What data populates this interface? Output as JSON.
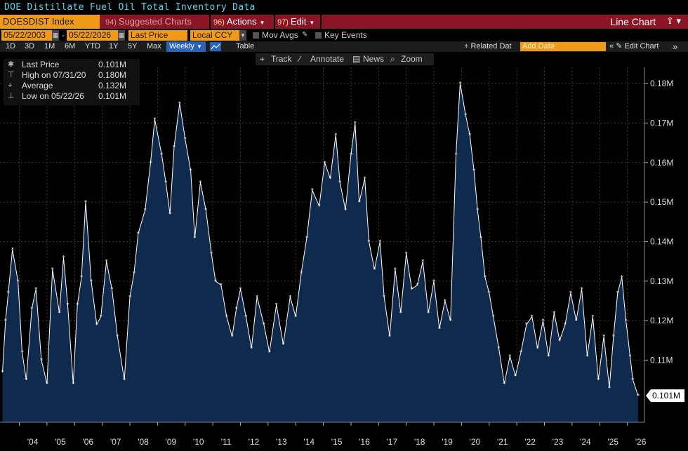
{
  "window": {
    "title": "DOE Distillate Fuel Oil Total Inventory Data"
  },
  "menubar": {
    "ticker": "DOESDIST Index",
    "suggested": {
      "num": "94)",
      "label": "Suggested Charts"
    },
    "actions": {
      "num": "96)",
      "label": "Actions"
    },
    "edit": {
      "num": "97)",
      "label": "Edit"
    },
    "view": "Line Chart"
  },
  "controls": {
    "start_date": "05/22/2003",
    "end_date": "05/22/2026",
    "field": "Last Price",
    "currency": "Local CCY",
    "mov_avgs": "Mov Avgs",
    "key_events": "Key Events"
  },
  "periods": [
    "1D",
    "3D",
    "1M",
    "6M",
    "YTD",
    "1Y",
    "5Y",
    "Max"
  ],
  "frequency": "Weekly",
  "table_label": "Table",
  "related_data": {
    "label": "+ Related Dat",
    "placeholder": "Add Data"
  },
  "edit_chart": "Edit Chart",
  "tools": {
    "track": "Track",
    "annotate": "Annotate",
    "news": "News",
    "zoom": "Zoom"
  },
  "legend": [
    {
      "key": "Last Price",
      "value": "0.101M"
    },
    {
      "key": "High on 07/31/20",
      "value": "0.180M"
    },
    {
      "key": "Average",
      "value": "0.132M"
    },
    {
      "key": "Low on 05/22/26",
      "value": "0.101M"
    }
  ],
  "colors": {
    "accent_orange": "#f09a1a",
    "menu_red": "#8a1524",
    "area_fill": "#0f2a4d",
    "line": "#ffffff",
    "title": "#5fd3e8"
  },
  "chart_data": {
    "type": "area",
    "ylim": [
      0.098,
      0.188
    ],
    "yticks": [
      "0.18M",
      "0.17M",
      "0.16M",
      "0.15M",
      "0.14M",
      "0.13M",
      "0.12M",
      "0.11M"
    ],
    "ytick_values": [
      0.18,
      0.17,
      0.16,
      0.15,
      0.14,
      0.13,
      0.12,
      0.11
    ],
    "xticks": [
      "'04",
      "'05",
      "'06",
      "'07",
      "'08",
      "'09",
      "'10",
      "'11",
      "'12",
      "'13",
      "'14",
      "'15",
      "'16",
      "'17",
      "'18",
      "'19",
      "'20",
      "'21",
      "'22",
      "'23",
      "'24",
      "'25",
      "'26"
    ],
    "xtick_values": [
      2004,
      2005,
      2006,
      2007,
      2008,
      2009,
      2010,
      2011,
      2012,
      2013,
      2014,
      2015,
      2016,
      2017,
      2018,
      2019,
      2020,
      2021,
      2022,
      2023,
      2024,
      2025,
      2026
    ],
    "last_value_label": "0.101M",
    "series": [
      {
        "x": [
          2003.39,
          2003.5,
          2003.6,
          2003.75,
          2003.95,
          2004.1,
          2004.25,
          2004.45,
          2004.6,
          2004.8,
          2005.0,
          2005.2,
          2005.45,
          2005.6,
          2005.75,
          2005.95,
          2006.1,
          2006.25,
          2006.4,
          2006.6,
          2006.8,
          2006.95,
          2007.15,
          2007.35,
          2007.55,
          2007.8,
          2008.0,
          2008.15,
          2008.3,
          2008.55,
          2008.75,
          2008.9,
          2009.15,
          2009.3,
          2009.45,
          2009.6,
          2009.8,
          2010.0,
          2010.2,
          2010.35,
          2010.55,
          2010.75,
          2010.95,
          2011.1,
          2011.3,
          2011.5,
          2011.7,
          2011.85,
          2012.0,
          2012.2,
          2012.4,
          2012.6,
          2012.85,
          2013.05,
          2013.3,
          2013.55,
          2013.8,
          2014.0,
          2014.2,
          2014.4,
          2014.6,
          2014.85,
          2015.05,
          2015.25,
          2015.45,
          2015.6,
          2015.8,
          2016.0,
          2016.15,
          2016.3,
          2016.5,
          2016.65,
          2016.85,
          2017.05,
          2017.2,
          2017.4,
          2017.6,
          2017.8,
          2018.0,
          2018.2,
          2018.4,
          2018.6,
          2018.8,
          2019.0,
          2019.2,
          2019.4,
          2019.6,
          2019.8,
          2019.95,
          2020.15,
          2020.3,
          2020.45,
          2020.58,
          2020.7,
          2020.85,
          2021.0,
          2021.15,
          2021.35,
          2021.55,
          2021.75,
          2021.95,
          2022.15,
          2022.35,
          2022.55,
          2022.75,
          2022.95,
          2023.15,
          2023.35,
          2023.55,
          2023.75,
          2023.95,
          2024.15,
          2024.35,
          2024.55,
          2024.75,
          2024.95,
          2025.15,
          2025.35,
          2025.5,
          2025.65,
          2025.8,
          2025.95,
          2026.1,
          2026.2,
          2026.39
        ],
        "y": [
          0.107,
          0.12,
          0.127,
          0.138,
          0.13,
          0.112,
          0.105,
          0.123,
          0.128,
          0.11,
          0.104,
          0.133,
          0.122,
          0.136,
          0.124,
          0.104,
          0.124,
          0.131,
          0.15,
          0.13,
          0.119,
          0.121,
          0.135,
          0.128,
          0.116,
          0.105,
          0.126,
          0.132,
          0.142,
          0.148,
          0.16,
          0.171,
          0.162,
          0.155,
          0.147,
          0.164,
          0.175,
          0.166,
          0.158,
          0.141,
          0.155,
          0.148,
          0.137,
          0.13,
          0.129,
          0.121,
          0.116,
          0.123,
          0.128,
          0.121,
          0.113,
          0.126,
          0.119,
          0.112,
          0.124,
          0.114,
          0.126,
          0.121,
          0.132,
          0.141,
          0.153,
          0.149,
          0.16,
          0.156,
          0.167,
          0.155,
          0.148,
          0.162,
          0.17,
          0.15,
          0.156,
          0.14,
          0.133,
          0.14,
          0.126,
          0.116,
          0.133,
          0.122,
          0.137,
          0.128,
          0.129,
          0.135,
          0.122,
          0.13,
          0.118,
          0.125,
          0.12,
          0.162,
          0.18,
          0.172,
          0.167,
          0.158,
          0.148,
          0.141,
          0.131,
          0.127,
          0.121,
          0.113,
          0.104,
          0.111,
          0.106,
          0.112,
          0.119,
          0.121,
          0.113,
          0.12,
          0.111,
          0.122,
          0.115,
          0.119,
          0.127,
          0.12,
          0.128,
          0.111,
          0.121,
          0.105,
          0.116,
          0.103,
          0.116,
          0.127,
          0.131,
          0.12,
          0.111,
          0.105,
          0.101
        ]
      }
    ]
  }
}
